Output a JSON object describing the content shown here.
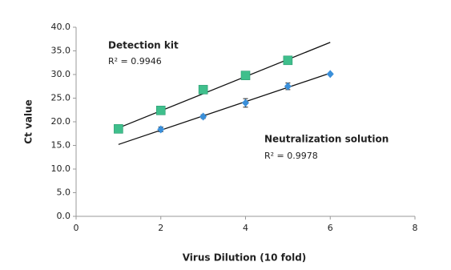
{
  "chart_data": {
    "type": "scatter",
    "x_label": "Virus Dilution (10 fold)",
    "y_label": "Ct value",
    "xlim": [
      0,
      8
    ],
    "xticks": [
      0,
      2,
      4,
      6,
      8
    ],
    "ylim": [
      0,
      40
    ],
    "yticks": [
      {
        "value": 0,
        "label": "0.0"
      },
      {
        "value": 5,
        "label": "5.0"
      },
      {
        "value": 10,
        "label": "10.0"
      },
      {
        "value": 15,
        "label": "15.0"
      },
      {
        "value": 20,
        "label": "20.0"
      },
      {
        "value": 25,
        "label": "25.0"
      },
      {
        "value": 30,
        "label": "30.0"
      },
      {
        "value": 35,
        "label": "35.0"
      },
      {
        "value": 40,
        "label": "40.0"
      }
    ],
    "series": [
      {
        "name": "Detection kit",
        "marker": "square",
        "color": "#3fbf8c",
        "x": [
          1,
          2,
          3,
          4,
          5
        ],
        "values": [
          18.5,
          22.4,
          26.8,
          29.8,
          33.0
        ],
        "errors": [
          0.3,
          0.3,
          0.3,
          0.7,
          0.6
        ],
        "trendline": {
          "x": [
            1,
            6
          ],
          "values": [
            18.7,
            36.8
          ]
        }
      },
      {
        "name": "Neutralization solution",
        "marker": "diamond",
        "color": "#3a8fd9",
        "x": [
          2,
          3,
          4,
          5,
          6
        ],
        "values": [
          18.4,
          21.1,
          24.0,
          27.5,
          30.1
        ],
        "errors": [
          0.5,
          0.4,
          0.9,
          0.7,
          0.2
        ],
        "trendline": {
          "x": [
            1,
            6
          ],
          "values": [
            15.2,
            30.3
          ]
        }
      }
    ],
    "annotations": [
      {
        "text": "R² = 0.9946"
      },
      {
        "text": "R² = 0.9978"
      }
    ]
  }
}
